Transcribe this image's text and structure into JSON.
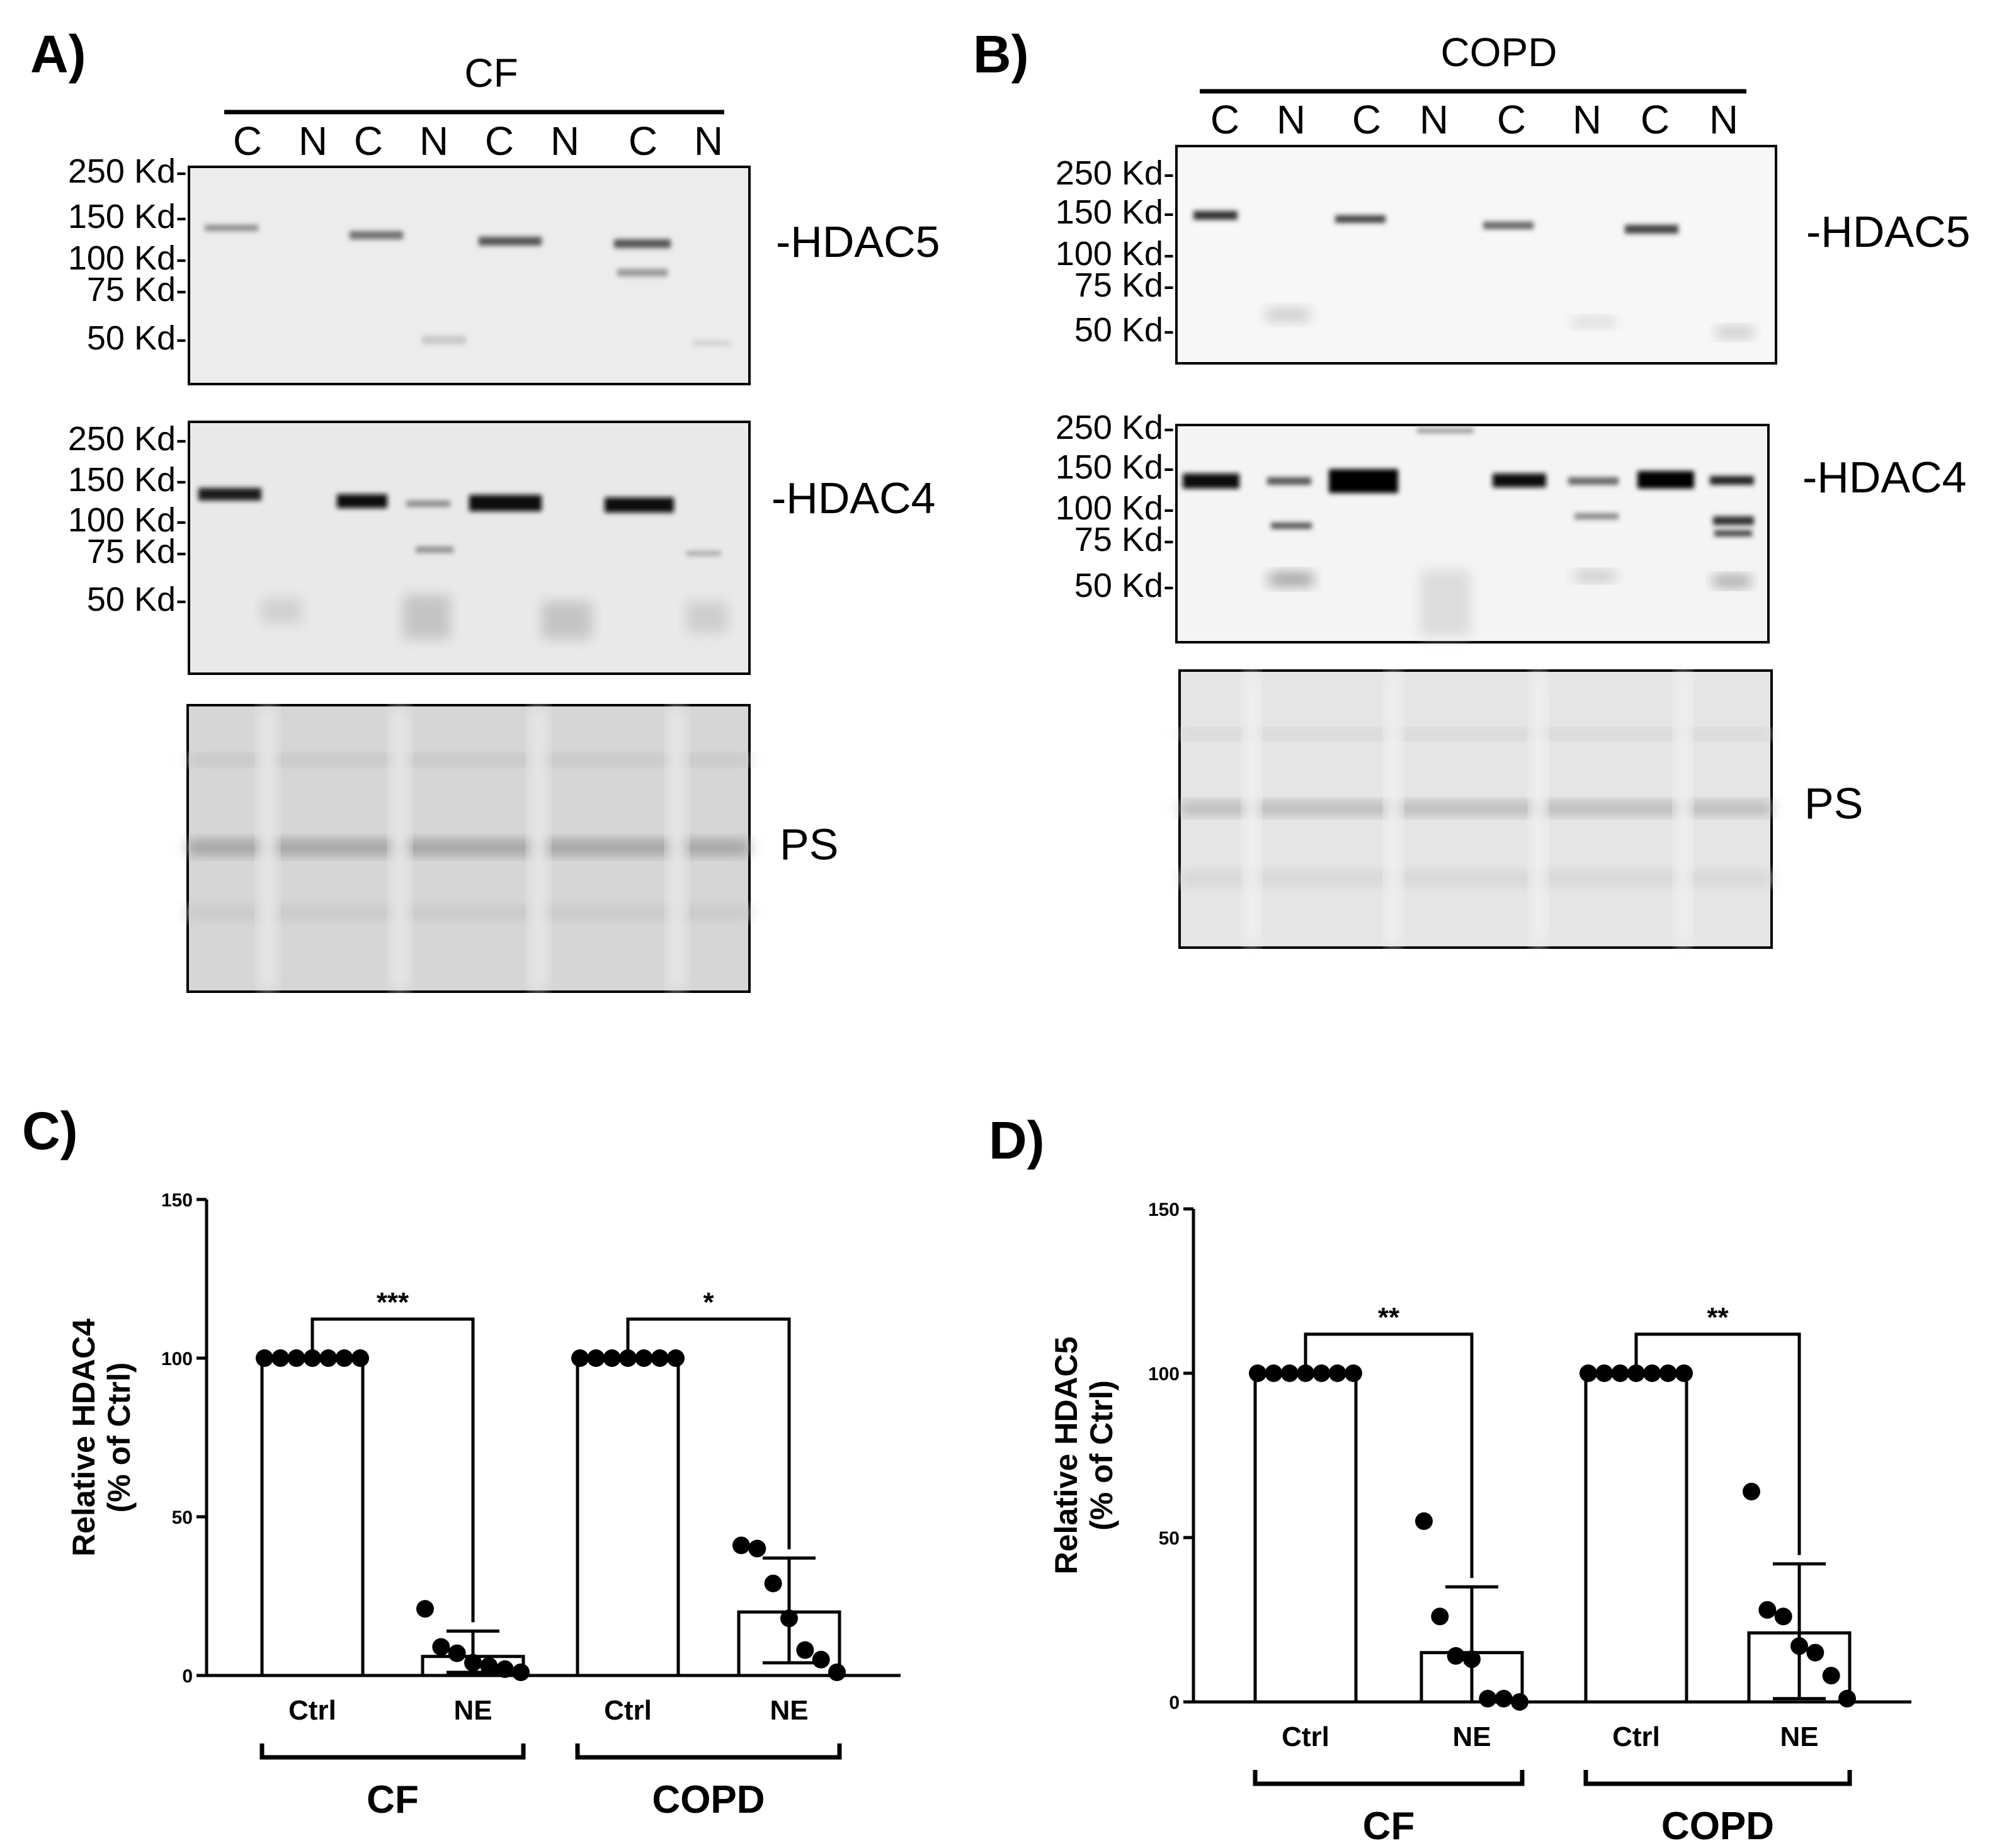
{
  "panels": {
    "A": {
      "letter": "A)",
      "group_label": "CF",
      "lanes": [
        "C",
        "N",
        "C",
        "N",
        "C",
        "N",
        "C",
        "N"
      ],
      "blots": [
        {
          "label": "-HDAC5",
          "markers": [
            "250 Kd-",
            "150 Kd-",
            "100 Kd-",
            "75 Kd-",
            "50 Kd-"
          ]
        },
        {
          "label": "-HDAC4",
          "markers": [
            "250 Kd-",
            "150 Kd-",
            "100 Kd-",
            "75 Kd-",
            "50 Kd-"
          ]
        },
        {
          "label": "PS",
          "markers": []
        }
      ]
    },
    "B": {
      "letter": "B)",
      "group_label": "COPD",
      "lanes": [
        "C",
        "N",
        "C",
        "N",
        "C",
        "N",
        "C",
        "N"
      ],
      "blots": [
        {
          "label": "-HDAC5",
          "markers": [
            "250 Kd-",
            "150 Kd-",
            "100 Kd-",
            "75 Kd-",
            "50 Kd-"
          ]
        },
        {
          "label": "-HDAC4",
          "markers": [
            "250 Kd-",
            "150 Kd-",
            "100 Kd-",
            "75 Kd-",
            "50 Kd-"
          ]
        },
        {
          "label": "PS",
          "markers": []
        }
      ]
    },
    "C": {
      "letter": "C)"
    },
    "D": {
      "letter": "D)"
    }
  },
  "chart_data": [
    {
      "type": "bar",
      "panel": "C",
      "ylabel": "Relative HDAC4 (% of Ctrl)",
      "ylabel_lines": [
        "Relative HDAC4",
        "(% of Ctrl)"
      ],
      "ylim": [
        0,
        150
      ],
      "yticks": [
        "0",
        "50",
        "100",
        "150"
      ],
      "categories": [
        "Ctrl",
        "NE",
        "Ctrl",
        "NE"
      ],
      "groups": [
        "CF",
        "COPD"
      ],
      "values": [
        100,
        6,
        100,
        20
      ],
      "error_upper": [
        100,
        14,
        100,
        37
      ],
      "error_lower": [
        100,
        1,
        100,
        4
      ],
      "points": [
        [
          100,
          100,
          100,
          100,
          100,
          100,
          100
        ],
        [
          21,
          9,
          7,
          4,
          3,
          2,
          1
        ],
        [
          100,
          100,
          100,
          100,
          100,
          100,
          100
        ],
        [
          41,
          40,
          29,
          18,
          8,
          5,
          1
        ]
      ],
      "significance": [
        "***",
        "*"
      ]
    },
    {
      "type": "bar",
      "panel": "D",
      "ylabel": "Relative HDAC5 (% of Ctrl)",
      "ylabel_lines": [
        "Relative HDAC5",
        "(% of Ctrl)"
      ],
      "ylim": [
        0,
        150
      ],
      "yticks": [
        "0",
        "50",
        "100",
        "150"
      ],
      "categories": [
        "Ctrl",
        "NE",
        "Ctrl",
        "NE"
      ],
      "groups": [
        "CF",
        "COPD"
      ],
      "values": [
        100,
        15,
        100,
        21
      ],
      "error_upper": [
        100,
        35,
        100,
        42
      ],
      "error_lower": [
        100,
        0,
        100,
        1
      ],
      "points": [
        [
          100,
          100,
          100,
          100,
          100,
          100,
          100
        ],
        [
          55,
          26,
          14,
          13,
          1,
          1,
          0
        ],
        [
          100,
          100,
          100,
          100,
          100,
          100,
          100
        ],
        [
          64,
          28,
          26,
          17,
          15,
          8,
          1
        ]
      ],
      "significance": [
        "**",
        "**"
      ]
    }
  ]
}
